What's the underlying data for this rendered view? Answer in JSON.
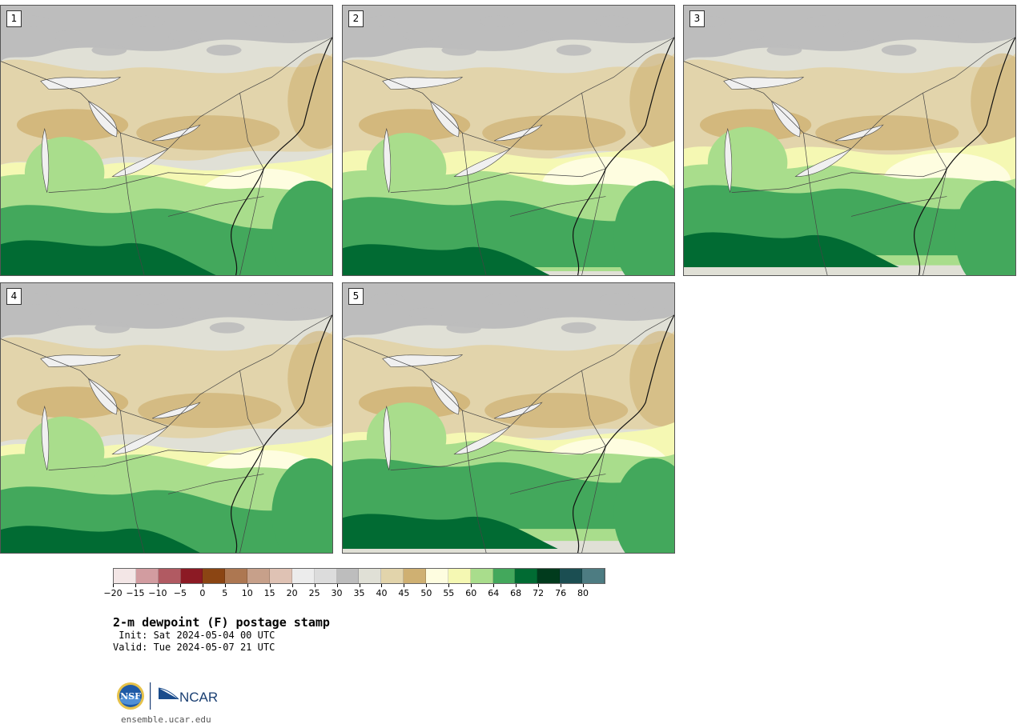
{
  "panels": [
    {
      "label": "1",
      "variant": 1
    },
    {
      "label": "2",
      "variant": 2
    },
    {
      "label": "3",
      "variant": 3
    },
    {
      "label": "4",
      "variant": 4
    },
    {
      "label": "5",
      "variant": 5
    }
  ],
  "colorbar": {
    "colors": [
      "#f3e6e6",
      "#d29ca0",
      "#b15a62",
      "#8c1a24",
      "#8b4513",
      "#ad7751",
      "#c7a08a",
      "#dfc2b4",
      "#ececec",
      "#dcdcdc",
      "#bdbdbd",
      "#e0e0d6",
      "#e2d4ab",
      "#cfb072",
      "#fefde0",
      "#f5f8b3",
      "#a9dd8c",
      "#43a85c",
      "#016b33",
      "#013b1d",
      "#1b4e52",
      "#4d7c82"
    ],
    "tick_labels": [
      "−20",
      "−15",
      "−10",
      "−5",
      "0",
      "5",
      "10",
      "15",
      "20",
      "25",
      "30",
      "35",
      "40",
      "45",
      "50",
      "55",
      "60",
      "64",
      "68",
      "72",
      "76",
      "80"
    ]
  },
  "title": "2-m dewpoint (F) postage stamp",
  "init": " Init: Sat 2024-05-04 00 UTC",
  "valid": "Valid: Tue 2024-05-07 21 UTC",
  "logos": {
    "nsf": "NSF",
    "ncar": "NCAR"
  },
  "url": "ensemble.ucar.edu",
  "map_palette": {
    "canada_gray": "#bdbdbd",
    "canada_light": "#e0e0d6",
    "tan": "#e2d4ab",
    "dark_tan": "#cfb072",
    "pale_yellow": "#fefde0",
    "yellow": "#f5f8b3",
    "light_green": "#a9dd8c",
    "green": "#43a85c",
    "dark_green": "#016b33",
    "water": "#f0f0f0"
  }
}
